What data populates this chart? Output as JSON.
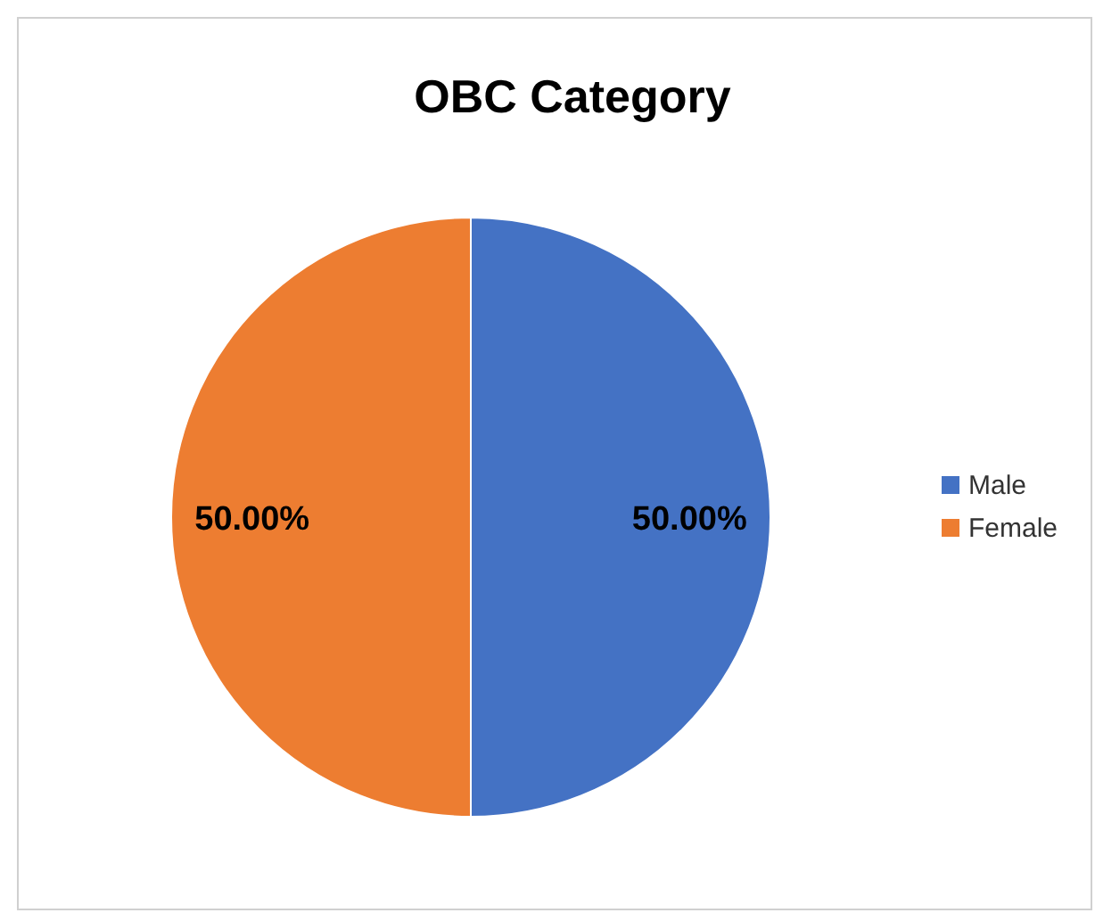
{
  "chart_data": {
    "type": "pie",
    "title": "OBC Category",
    "categories": [
      "Male",
      "Female"
    ],
    "values": [
      50,
      50
    ],
    "colors": [
      "#4472c4",
      "#ed7d31"
    ],
    "value_labels": [
      "50.00%",
      "50.00%"
    ],
    "legend": "right"
  }
}
